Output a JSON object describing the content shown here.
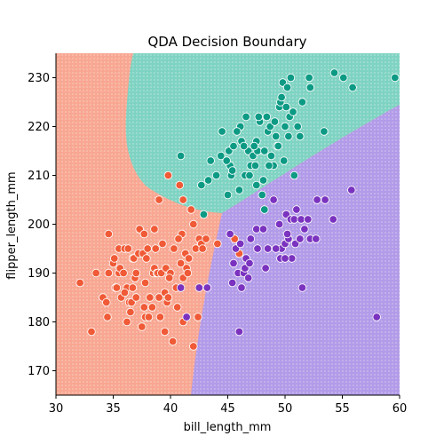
{
  "chart_data": {
    "type": "scatter",
    "title": "QDA Decision Boundary",
    "xlabel": "bill_length_mm",
    "ylabel": "flipper_length_mm",
    "xlim": [
      30,
      60
    ],
    "ylim": [
      165,
      235
    ],
    "xticks": [
      "30",
      "35",
      "40",
      "45",
      "50",
      "55",
      "60"
    ],
    "yticks": [
      "170",
      "180",
      "190",
      "200",
      "210",
      "220",
      "230"
    ],
    "grid": false,
    "legend": "none",
    "regions": [
      {
        "class": "coral",
        "fill": "#f8a792"
      },
      {
        "class": "teal",
        "fill": "#7fd3c2"
      },
      {
        "class": "purple",
        "fill": "#b29be8"
      }
    ],
    "series": [
      {
        "color": "#f05a36",
        "points": [
          [
            32.1,
            188
          ],
          [
            33.1,
            178
          ],
          [
            33.5,
            190
          ],
          [
            34.1,
            185
          ],
          [
            34.4,
            184
          ],
          [
            34.5,
            181
          ],
          [
            34.6,
            190
          ],
          [
            34.6,
            198
          ],
          [
            35.0,
            192
          ],
          [
            35.1,
            193
          ],
          [
            35.2,
            187
          ],
          [
            35.3,
            187
          ],
          [
            35.5,
            195
          ],
          [
            35.5,
            190
          ],
          [
            35.6,
            191
          ],
          [
            35.7,
            185
          ],
          [
            35.9,
            190
          ],
          [
            36.0,
            195
          ],
          [
            36.2,
            187
          ],
          [
            36.2,
            180
          ],
          [
            36.3,
            195
          ],
          [
            36.4,
            184
          ],
          [
            36.5,
            182
          ],
          [
            36.6,
            184
          ],
          [
            36.7,
            187
          ],
          [
            36.7,
            193
          ],
          [
            36.8,
            193
          ],
          [
            36.9,
            189
          ],
          [
            37.0,
            185
          ],
          [
            37.2,
            194
          ],
          [
            37.3,
            199
          ],
          [
            37.5,
            179
          ],
          [
            37.6,
            194
          ],
          [
            37.7,
            198
          ],
          [
            37.7,
            183
          ],
          [
            37.8,
            181
          ],
          [
            37.8,
            188
          ],
          [
            37.9,
            193
          ],
          [
            38.1,
            181
          ],
          [
            38.2,
            185
          ],
          [
            38.5,
            190
          ],
          [
            38.6,
            199
          ],
          [
            38.6,
            191
          ],
          [
            38.7,
            195
          ],
          [
            38.8,
            190
          ],
          [
            38.9,
            190
          ],
          [
            39.0,
            185
          ],
          [
            39.1,
            181
          ],
          [
            39.2,
            190
          ],
          [
            39.3,
            196
          ],
          [
            39.5,
            186
          ],
          [
            39.5,
            178
          ],
          [
            39.6,
            191
          ],
          [
            39.7,
            184
          ],
          [
            39.8,
            185
          ],
          [
            40.2,
            176
          ],
          [
            40.3,
            195
          ],
          [
            40.5,
            187
          ],
          [
            40.6,
            183
          ],
          [
            40.8,
            208
          ],
          [
            40.9,
            192
          ],
          [
            41.0,
            198
          ],
          [
            41.1,
            205
          ],
          [
            41.1,
            189
          ],
          [
            41.3,
            194
          ],
          [
            41.4,
            191
          ],
          [
            41.5,
            190
          ],
          [
            41.8,
            203
          ],
          [
            42.0,
            200
          ],
          [
            42.2,
            195
          ],
          [
            42.4,
            181
          ],
          [
            42.5,
            197
          ],
          [
            42.7,
            196
          ],
          [
            42.8,
            195
          ],
          [
            43.1,
            197
          ],
          [
            44.1,
            196
          ],
          [
            45.6,
            197
          ],
          [
            42.0,
            175
          ],
          [
            41.1,
            180
          ],
          [
            40.0,
            190
          ],
          [
            39.0,
            205
          ],
          [
            38.0,
            195
          ],
          [
            37.0,
            190
          ],
          [
            36.0,
            186
          ],
          [
            40.7,
            197
          ],
          [
            39.9,
            189
          ],
          [
            38.4,
            183
          ],
          [
            41.6,
            193
          ],
          [
            39.8,
            210
          ],
          [
            46.0,
            194
          ]
        ]
      },
      {
        "color": "#0d9a84",
        "points": [
          [
            40.9,
            214
          ],
          [
            42.7,
            208
          ],
          [
            42.9,
            202
          ],
          [
            44.4,
            214
          ],
          [
            45.1,
            215
          ],
          [
            45.2,
            212
          ],
          [
            45.3,
            210
          ],
          [
            45.5,
            216
          ],
          [
            46.1,
            220
          ],
          [
            46.2,
            217
          ],
          [
            46.5,
            210
          ],
          [
            46.8,
            215
          ],
          [
            47.0,
            212
          ],
          [
            47.2,
            214
          ],
          [
            47.4,
            212
          ],
          [
            47.5,
            217
          ],
          [
            47.6,
            215
          ],
          [
            47.8,
            221
          ],
          [
            48.1,
            209
          ],
          [
            48.2,
            215
          ],
          [
            48.4,
            222
          ],
          [
            48.5,
            219
          ],
          [
            48.7,
            220
          ],
          [
            48.8,
            214
          ],
          [
            49.0,
            212
          ],
          [
            49.1,
            221
          ],
          [
            49.2,
            218
          ],
          [
            49.3,
            216
          ],
          [
            49.5,
            224
          ],
          [
            49.6,
            225
          ],
          [
            49.8,
            229
          ],
          [
            49.9,
            213
          ],
          [
            50.0,
            220
          ],
          [
            50.1,
            224
          ],
          [
            50.2,
            228
          ],
          [
            50.4,
            222
          ],
          [
            50.5,
            230
          ],
          [
            50.7,
            223
          ],
          [
            50.8,
            210
          ],
          [
            51.1,
            220
          ],
          [
            51.3,
            218
          ],
          [
            51.5,
            225
          ],
          [
            52.1,
            230
          ],
          [
            52.2,
            228
          ],
          [
            53.4,
            219
          ],
          [
            54.3,
            231
          ],
          [
            55.1,
            230
          ],
          [
            55.9,
            228
          ],
          [
            59.6,
            230
          ],
          [
            48.2,
            203
          ],
          [
            46.4,
            216
          ],
          [
            47.3,
            216
          ],
          [
            43.3,
            209
          ],
          [
            44.0,
            210
          ],
          [
            45.4,
            211
          ],
          [
            46.9,
            210
          ],
          [
            45.8,
            219
          ],
          [
            47.7,
            222
          ],
          [
            49.4,
            216
          ],
          [
            48.6,
            212
          ],
          [
            43.5,
            213
          ],
          [
            44.9,
            213
          ],
          [
            46.6,
            222
          ],
          [
            50.3,
            218
          ],
          [
            49.7,
            226
          ],
          [
            45.0,
            206
          ],
          [
            46.0,
            207
          ],
          [
            47.5,
            208
          ],
          [
            48.0,
            206
          ],
          [
            44.5,
            219
          ]
        ]
      },
      {
        "color": "#7a32bf",
        "points": [
          [
            40.9,
            187
          ],
          [
            41.4,
            181
          ],
          [
            42.5,
            187
          ],
          [
            43.2,
            187
          ],
          [
            45.2,
            198
          ],
          [
            45.4,
            188
          ],
          [
            45.7,
            195
          ],
          [
            45.9,
            190
          ],
          [
            46.0,
            178
          ],
          [
            46.1,
            196
          ],
          [
            46.2,
            187
          ],
          [
            46.4,
            190
          ],
          [
            46.5,
            191
          ],
          [
            46.6,
            193
          ],
          [
            46.9,
            192
          ],
          [
            47.0,
            197
          ],
          [
            47.5,
            199
          ],
          [
            48.1,
            199
          ],
          [
            48.5,
            195
          ],
          [
            49.0,
            205
          ],
          [
            49.5,
            200
          ],
          [
            49.7,
            195
          ],
          [
            50.0,
            196
          ],
          [
            50.1,
            202
          ],
          [
            50.3,
            197
          ],
          [
            50.5,
            201
          ],
          [
            50.6,
            193
          ],
          [
            50.8,
            201
          ],
          [
            50.9,
            196
          ],
          [
            51.0,
            203
          ],
          [
            51.3,
            197
          ],
          [
            51.4,
            201
          ],
          [
            51.5,
            187
          ],
          [
            51.7,
            199
          ],
          [
            52.0,
            201
          ],
          [
            52.2,
            197
          ],
          [
            52.7,
            197
          ],
          [
            53.5,
            205
          ],
          [
            54.2,
            201
          ],
          [
            55.8,
            207
          ],
          [
            58.0,
            181
          ],
          [
            49.2,
            195
          ],
          [
            49.6,
            193
          ],
          [
            50.2,
            198
          ],
          [
            45.5,
            192
          ],
          [
            47.6,
            195
          ],
          [
            48.3,
            191
          ],
          [
            52.8,
            205
          ],
          [
            50.0,
            193
          ],
          [
            46.8,
            189
          ]
        ]
      }
    ]
  }
}
